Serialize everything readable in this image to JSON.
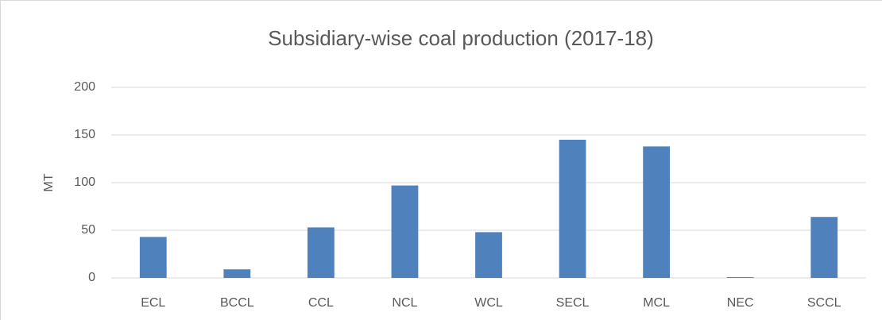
{
  "chart_data": {
    "type": "bar",
    "title": "Subsidiary-wise coal production (2017-18)",
    "y_label": "MT",
    "categories": [
      "ECL",
      "BCCL",
      "CCL",
      "NCL",
      "WCL",
      "SECL",
      "MCL",
      "NEC",
      "SCCL"
    ],
    "values": [
      43,
      9,
      53,
      97,
      48,
      145,
      138,
      0.8,
      64
    ],
    "color": "#4f81bd",
    "ylim": [
      0,
      200
    ],
    "yticks": [
      0,
      50,
      100,
      150,
      200
    ],
    "grid": true
  }
}
